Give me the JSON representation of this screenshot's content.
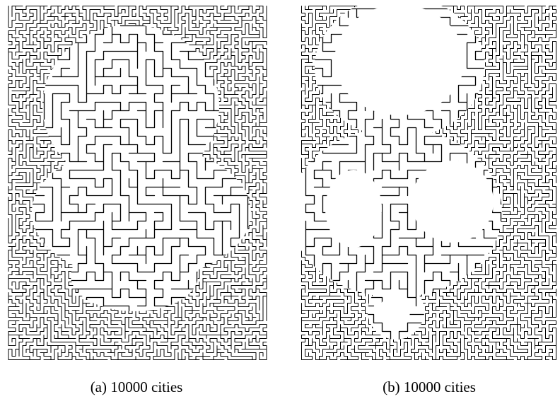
{
  "figure": {
    "panels": [
      {
        "caption": "(a) 10000 cities"
      },
      {
        "caption": "(b) 10000 cities"
      }
    ]
  }
}
